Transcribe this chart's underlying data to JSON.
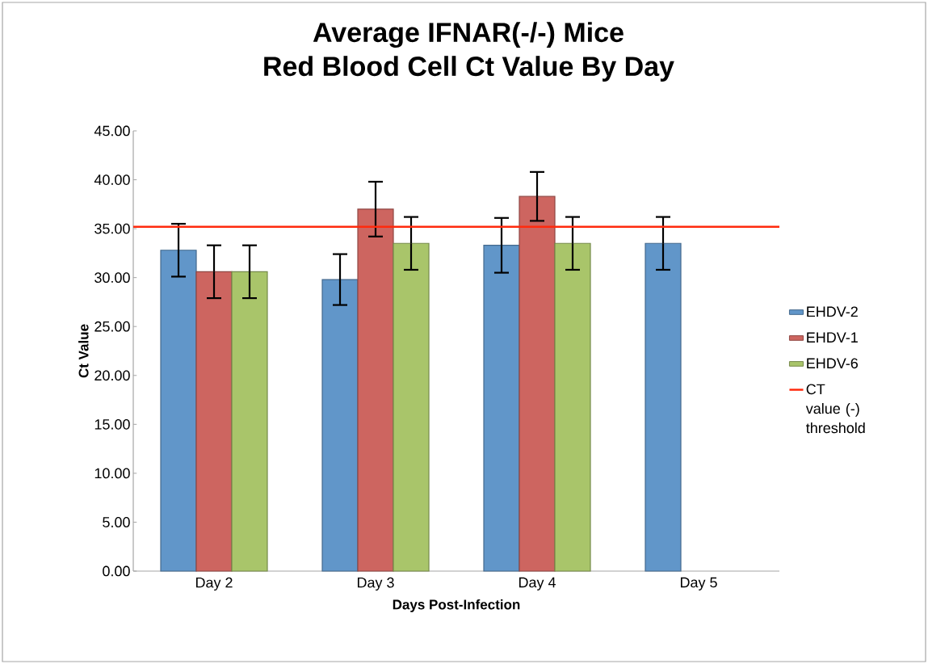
{
  "chart_data": {
    "type": "bar",
    "title": "Average IFNAR(-/-) Mice\nRed Blood Cell Ct Value By Day",
    "xlabel": "Days Post-Infection",
    "ylabel": "Ct Value",
    "categories": [
      "Day 2",
      "Day 3",
      "Day 4",
      "Day 5"
    ],
    "series": [
      {
        "name": "EHDV-2",
        "color": "#6196c9",
        "values": [
          32.8,
          29.8,
          33.3,
          33.5
        ],
        "errors": [
          2.7,
          2.6,
          2.8,
          2.7
        ]
      },
      {
        "name": "EHDV-1",
        "color": "#cd6560",
        "values": [
          30.6,
          37.0,
          38.3,
          null
        ],
        "errors": [
          2.7,
          2.8,
          2.5,
          null
        ]
      },
      {
        "name": "EHDV-6",
        "color": "#a9c56a",
        "values": [
          30.6,
          33.5,
          33.5,
          null
        ],
        "errors": [
          2.7,
          2.7,
          2.7,
          null
        ]
      }
    ],
    "ylim": [
      0,
      45
    ],
    "yticks": [
      {
        "value": 0,
        "label": "0.00"
      },
      {
        "value": 5,
        "label": "5.00"
      },
      {
        "value": 10,
        "label": "10.00"
      },
      {
        "value": 15,
        "label": "15.00"
      },
      {
        "value": 20,
        "label": "20.00"
      },
      {
        "value": 25,
        "label": "25.00"
      },
      {
        "value": 30,
        "label": "30.00"
      },
      {
        "value": 35,
        "label": "35.00"
      },
      {
        "value": 40,
        "label": "40.00"
      },
      {
        "value": 45,
        "label": "45.00"
      }
    ],
    "ref_lines": [
      {
        "axis": "y",
        "value": 35.2,
        "label": "CT value (-) threshold",
        "color": "#ff2a0d"
      }
    ],
    "legend": "right"
  }
}
